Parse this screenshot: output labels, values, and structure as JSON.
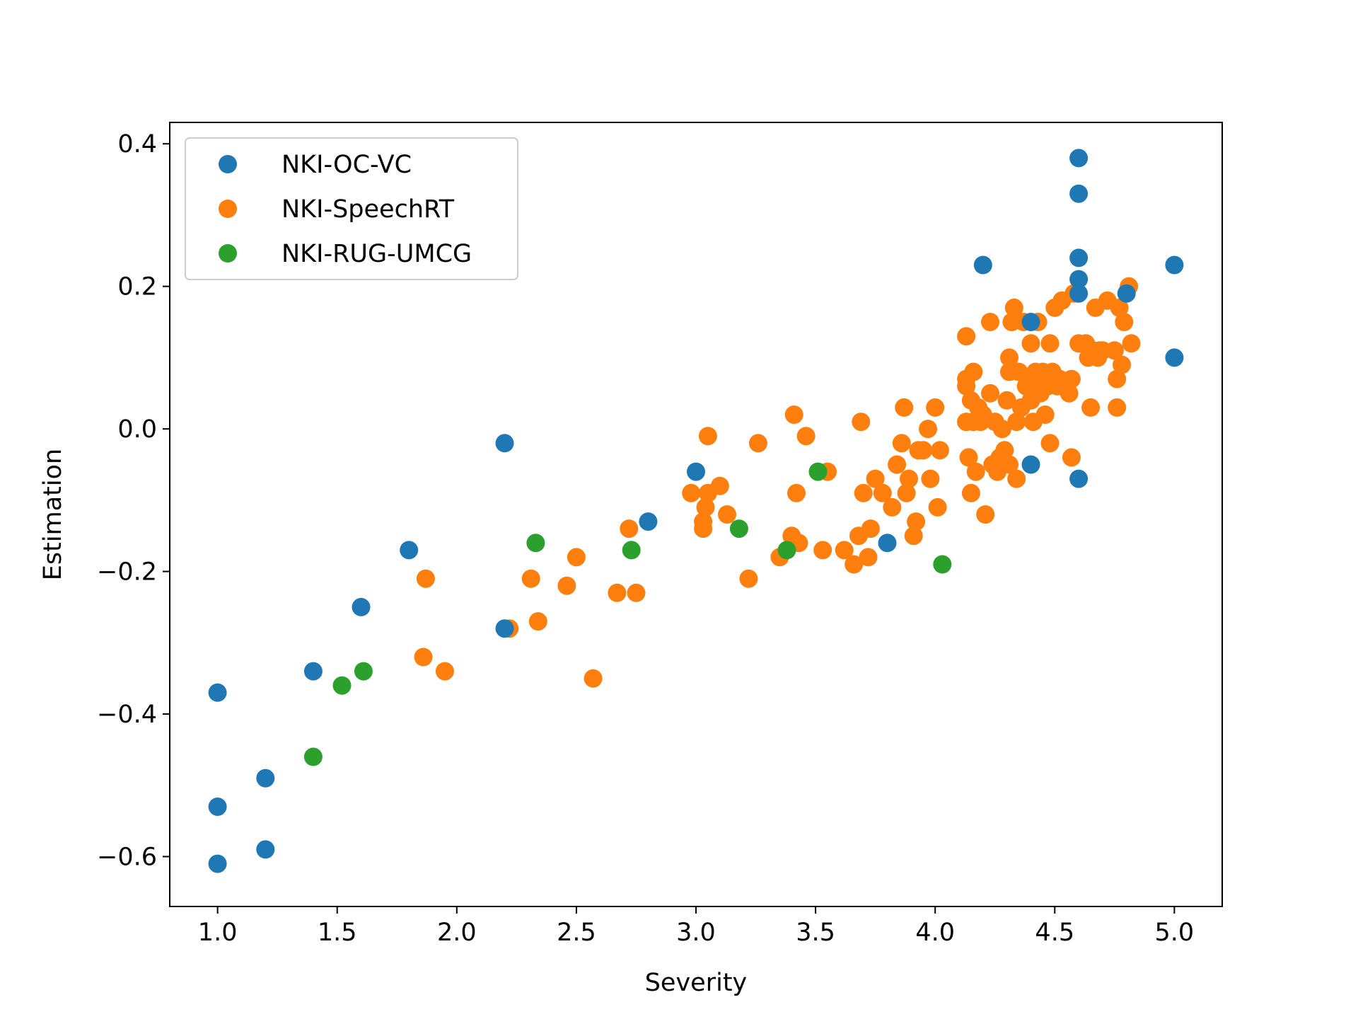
{
  "chart_data": {
    "type": "scatter",
    "title": "",
    "xlabel": "Severity",
    "ylabel": "Estimation",
    "xlim": [
      0.8,
      5.2
    ],
    "ylim": [
      -0.67,
      0.43
    ],
    "xticks": [
      1.0,
      1.5,
      2.0,
      2.5,
      3.0,
      3.5,
      4.0,
      4.5,
      5.0
    ],
    "xtick_labels": [
      "1.0",
      "1.5",
      "2.0",
      "2.5",
      "3.0",
      "3.5",
      "4.0",
      "4.5",
      "5.0"
    ],
    "yticks": [
      -0.6,
      -0.4,
      -0.2,
      0.0,
      0.2,
      0.4
    ],
    "ytick_labels": [
      "−0.6",
      "−0.4",
      "−0.2",
      "0.0",
      "0.2",
      "0.4"
    ],
    "grid": false,
    "legend_position": "upper-left",
    "series": [
      {
        "name": "NKI-SpeechRT",
        "color": "#ff7f0e",
        "points": [
          [
            1.86,
            -0.32
          ],
          [
            1.87,
            -0.21
          ],
          [
            1.95,
            -0.34
          ],
          [
            2.22,
            -0.28
          ],
          [
            2.31,
            -0.21
          ],
          [
            2.34,
            -0.27
          ],
          [
            2.46,
            -0.22
          ],
          [
            2.5,
            -0.18
          ],
          [
            2.57,
            -0.35
          ],
          [
            2.67,
            -0.23
          ],
          [
            2.72,
            -0.14
          ],
          [
            2.75,
            -0.23
          ],
          [
            2.98,
            -0.09
          ],
          [
            3.03,
            -0.14
          ],
          [
            3.03,
            -0.13
          ],
          [
            3.04,
            -0.11
          ],
          [
            3.05,
            -0.09
          ],
          [
            3.05,
            -0.01
          ],
          [
            3.1,
            -0.08
          ],
          [
            3.13,
            -0.12
          ],
          [
            3.22,
            -0.21
          ],
          [
            3.26,
            -0.02
          ],
          [
            3.35,
            -0.18
          ],
          [
            3.4,
            -0.15
          ],
          [
            3.41,
            0.02
          ],
          [
            3.42,
            -0.09
          ],
          [
            3.43,
            -0.16
          ],
          [
            3.46,
            -0.01
          ],
          [
            3.53,
            -0.17
          ],
          [
            3.55,
            -0.06
          ],
          [
            3.62,
            -0.17
          ],
          [
            3.66,
            -0.19
          ],
          [
            3.68,
            -0.15
          ],
          [
            3.69,
            0.01
          ],
          [
            3.7,
            -0.09
          ],
          [
            3.72,
            -0.18
          ],
          [
            3.73,
            -0.14
          ],
          [
            3.75,
            -0.07
          ],
          [
            3.78,
            -0.09
          ],
          [
            3.82,
            -0.11
          ],
          [
            3.84,
            -0.05
          ],
          [
            3.86,
            -0.02
          ],
          [
            3.87,
            0.03
          ],
          [
            3.88,
            -0.09
          ],
          [
            3.89,
            -0.07
          ],
          [
            3.91,
            -0.15
          ],
          [
            3.92,
            -0.13
          ],
          [
            3.93,
            -0.03
          ],
          [
            3.95,
            -0.03
          ],
          [
            3.97,
            0.0
          ],
          [
            3.98,
            -0.07
          ],
          [
            4.0,
            0.03
          ],
          [
            4.01,
            -0.11
          ],
          [
            4.02,
            -0.03
          ],
          [
            4.13,
            0.13
          ],
          [
            4.13,
            0.07
          ],
          [
            4.13,
            0.06
          ],
          [
            4.13,
            0.01
          ],
          [
            4.14,
            -0.04
          ],
          [
            4.15,
            -0.09
          ],
          [
            4.15,
            0.04
          ],
          [
            4.16,
            0.08
          ],
          [
            4.16,
            0.01
          ],
          [
            4.17,
            -0.06
          ],
          [
            4.18,
            0.03
          ],
          [
            4.19,
            0.01
          ],
          [
            4.2,
            0.02
          ],
          [
            4.21,
            -0.12
          ],
          [
            4.23,
            0.15
          ],
          [
            4.23,
            0.05
          ],
          [
            4.24,
            -0.05
          ],
          [
            4.25,
            0.01
          ],
          [
            4.26,
            -0.06
          ],
          [
            4.27,
            -0.04
          ],
          [
            4.28,
            0.0
          ],
          [
            4.29,
            -0.03
          ],
          [
            4.3,
            0.04
          ],
          [
            4.31,
            0.1
          ],
          [
            4.31,
            0.08
          ],
          [
            4.31,
            -0.05
          ],
          [
            4.32,
            0.15
          ],
          [
            4.33,
            0.17
          ],
          [
            4.34,
            0.01
          ],
          [
            4.34,
            -0.07
          ],
          [
            4.35,
            0.08
          ],
          [
            4.36,
            0.03
          ],
          [
            4.37,
            0.15
          ],
          [
            4.38,
            0.06
          ],
          [
            4.39,
            0.07
          ],
          [
            4.4,
            0.12
          ],
          [
            4.4,
            0.04
          ],
          [
            4.41,
            0.01
          ],
          [
            4.42,
            0.08
          ],
          [
            4.43,
            0.15
          ],
          [
            4.43,
            0.06
          ],
          [
            4.44,
            0.05
          ],
          [
            4.45,
            0.08
          ],
          [
            4.46,
            0.02
          ],
          [
            4.47,
            0.06
          ],
          [
            4.48,
            0.12
          ],
          [
            4.48,
            -0.02
          ],
          [
            4.49,
            0.08
          ],
          [
            4.5,
            0.17
          ],
          [
            4.51,
            0.06
          ],
          [
            4.52,
            0.07
          ],
          [
            4.53,
            0.18
          ],
          [
            4.56,
            0.05
          ],
          [
            4.57,
            0.07
          ],
          [
            4.57,
            -0.04
          ],
          [
            4.58,
            0.19
          ],
          [
            4.6,
            0.12
          ],
          [
            4.63,
            0.12
          ],
          [
            4.64,
            0.1
          ],
          [
            4.65,
            0.03
          ],
          [
            4.66,
            0.11
          ],
          [
            4.67,
            0.17
          ],
          [
            4.68,
            0.1
          ],
          [
            4.69,
            0.11
          ],
          [
            4.7,
            0.11
          ],
          [
            4.72,
            0.18
          ],
          [
            4.75,
            0.11
          ],
          [
            4.76,
            0.07
          ],
          [
            4.76,
            0.03
          ],
          [
            4.77,
            0.17
          ],
          [
            4.78,
            0.09
          ],
          [
            4.79,
            0.15
          ],
          [
            4.81,
            0.2
          ],
          [
            4.82,
            0.12
          ]
        ]
      },
      {
        "name": "NKI-OC-VC",
        "color": "#1f77b4",
        "points": [
          [
            1.0,
            -0.37
          ],
          [
            1.0,
            -0.53
          ],
          [
            1.0,
            -0.61
          ],
          [
            1.2,
            -0.49
          ],
          [
            1.2,
            -0.59
          ],
          [
            1.4,
            -0.34
          ],
          [
            1.6,
            -0.25
          ],
          [
            1.8,
            -0.17
          ],
          [
            2.2,
            -0.02
          ],
          [
            2.2,
            -0.28
          ],
          [
            2.8,
            -0.13
          ],
          [
            3.0,
            -0.06
          ],
          [
            3.8,
            -0.16
          ],
          [
            4.2,
            0.23
          ],
          [
            4.4,
            -0.05
          ],
          [
            4.4,
            0.15
          ],
          [
            4.6,
            0.38
          ],
          [
            4.6,
            0.33
          ],
          [
            4.6,
            0.24
          ],
          [
            4.6,
            0.21
          ],
          [
            4.6,
            0.19
          ],
          [
            4.6,
            -0.07
          ],
          [
            4.8,
            0.19
          ],
          [
            5.0,
            0.23
          ],
          [
            5.0,
            0.1
          ]
        ]
      },
      {
        "name": "NKI-RUG-UMCG",
        "color": "#2ca02c",
        "points": [
          [
            1.4,
            -0.46
          ],
          [
            1.52,
            -0.36
          ],
          [
            1.61,
            -0.34
          ],
          [
            2.33,
            -0.16
          ],
          [
            2.73,
            -0.17
          ],
          [
            3.18,
            -0.14
          ],
          [
            3.38,
            -0.17
          ],
          [
            3.51,
            -0.06
          ],
          [
            4.03,
            -0.19
          ]
        ]
      }
    ],
    "legend_order": [
      "NKI-OC-VC",
      "NKI-SpeechRT",
      "NKI-RUG-UMCG"
    ]
  }
}
